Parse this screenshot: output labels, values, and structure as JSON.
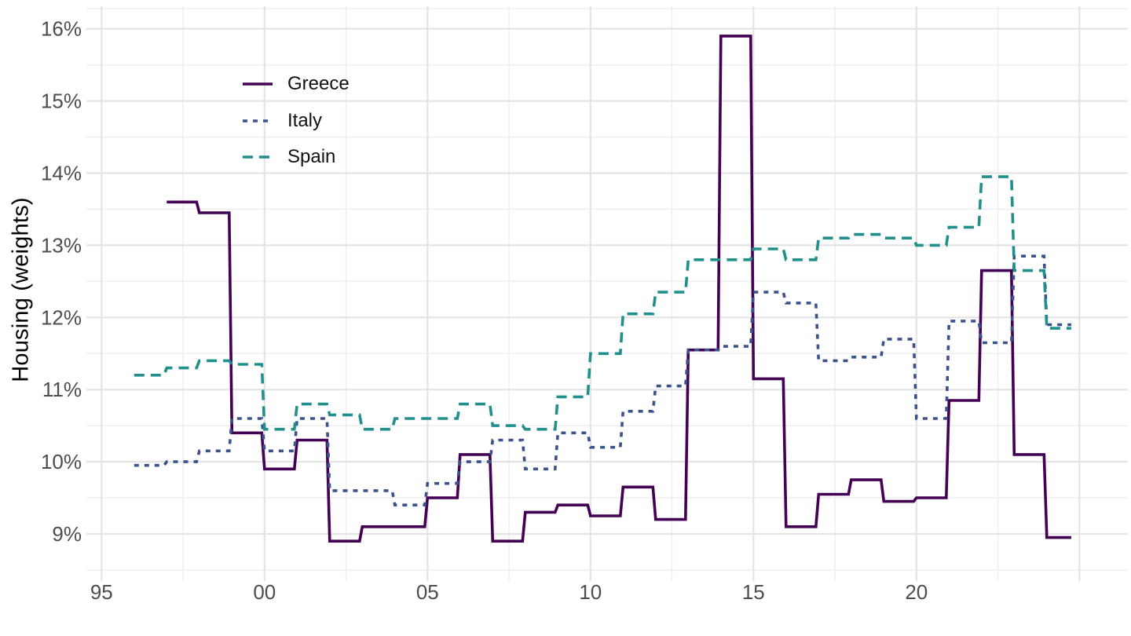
{
  "chart_data": {
    "type": "line",
    "variant": "step-monthly",
    "title": "",
    "xlabel": "",
    "ylabel": "Housing (weights)",
    "ylim": [
      8.35,
      16.3
    ],
    "xlim": [
      1994.5,
      2026.6
    ],
    "grid": "on",
    "legend_position": "inside-top-left",
    "colors": {
      "background": "#FFFFFF",
      "grid_major": "#E4E4E4",
      "grid_minor": "#EFEFEF",
      "tick_text": "#4D4D4D",
      "axis_title": "#000000"
    },
    "x_ticks": [
      {
        "year": 1995,
        "label": "95"
      },
      {
        "year": 2000,
        "label": "00"
      },
      {
        "year": 2005,
        "label": "05"
      },
      {
        "year": 2010,
        "label": "10"
      },
      {
        "year": 2015,
        "label": "15"
      },
      {
        "year": 2020,
        "label": "20"
      }
    ],
    "y_ticks": [
      {
        "value": 9,
        "label": "9%"
      },
      {
        "value": 10,
        "label": "10%"
      },
      {
        "value": 11,
        "label": "11%"
      },
      {
        "value": 12,
        "label": "12%"
      },
      {
        "value": 13,
        "label": "13%"
      },
      {
        "value": 14,
        "label": "14%"
      },
      {
        "value": 15,
        "label": "15%"
      },
      {
        "value": 16,
        "label": "16%"
      }
    ],
    "series": [
      {
        "name": "Greece",
        "color": "#440154",
        "dash": "solid",
        "start_year": 1997,
        "end_x": 2024.75,
        "values": [
          13.6,
          13.45,
          10.4,
          9.9,
          10.3,
          8.9,
          9.1,
          9.1,
          9.5,
          10.1,
          8.9,
          9.3,
          9.4,
          9.25,
          9.65,
          9.2,
          11.55,
          15.9,
          11.15,
          9.1,
          9.55,
          9.75,
          9.45,
          9.5,
          10.85,
          12.65,
          10.1,
          8.95
        ]
      },
      {
        "name": "Italy",
        "color": "#3B528B",
        "dash": "dotted",
        "start_year": 1996,
        "end_x": 2024.75,
        "values": [
          9.95,
          10.0,
          10.15,
          10.6,
          10.15,
          10.6,
          9.6,
          9.6,
          9.4,
          9.7,
          10.0,
          10.3,
          9.9,
          10.4,
          10.2,
          10.7,
          11.05,
          11.55,
          11.6,
          12.35,
          12.2,
          11.4,
          11.45,
          11.7,
          10.6,
          11.95,
          11.65,
          12.85,
          11.9
        ]
      },
      {
        "name": "Spain",
        "color": "#21908C",
        "dash": "dashed",
        "start_year": 1996,
        "end_x": 2024.75,
        "values": [
          11.2,
          11.3,
          11.4,
          11.35,
          10.45,
          10.8,
          10.65,
          10.45,
          10.6,
          10.6,
          10.8,
          10.5,
          10.45,
          10.9,
          11.5,
          12.05,
          12.35,
          12.8,
          12.8,
          12.95,
          12.8,
          13.1,
          13.15,
          13.1,
          13.0,
          13.25,
          13.95,
          12.65,
          11.85
        ]
      }
    ]
  }
}
